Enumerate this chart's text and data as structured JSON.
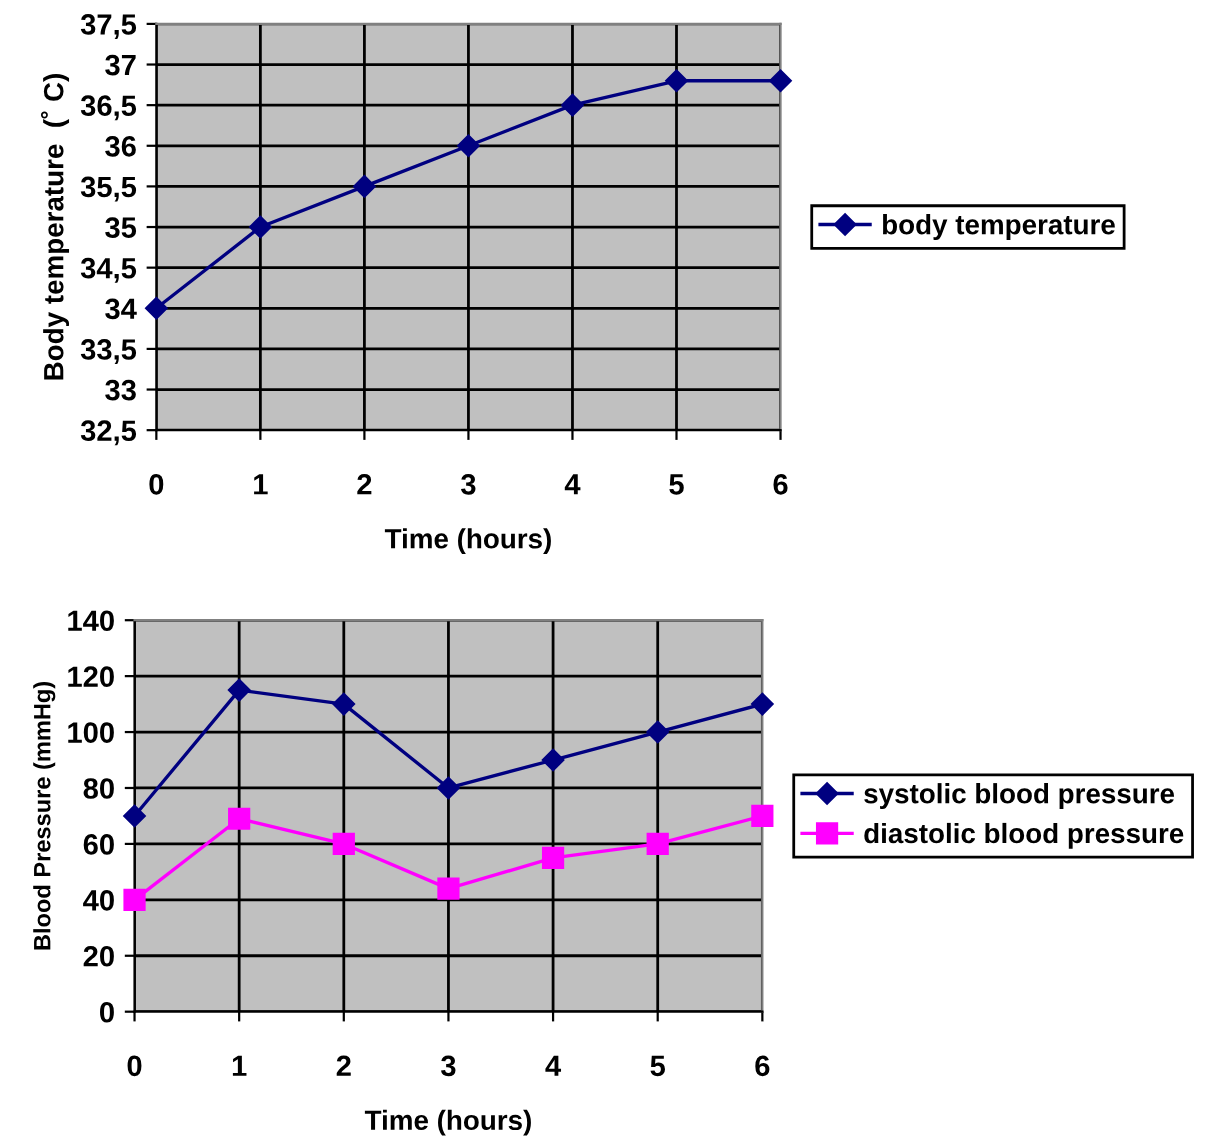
{
  "chart_data": [
    {
      "type": "line",
      "xlabel": "Time (hours)",
      "ylabel": "Body temperature  (˚ C)",
      "x": [
        0,
        1,
        2,
        3,
        4,
        5,
        6
      ],
      "series": [
        {
          "name": "body temperature",
          "color": "#000080",
          "marker": "diamond",
          "values": [
            34,
            35,
            35.5,
            36,
            36.5,
            36.8,
            36.8
          ]
        }
      ],
      "xlim": [
        0,
        6
      ],
      "xticks": [
        0,
        1,
        2,
        3,
        4,
        5,
        6
      ],
      "ylim": [
        32.5,
        37.5
      ],
      "yticks": [
        {
          "value": 32.5,
          "label": "32,5"
        },
        33,
        {
          "value": 33.5,
          "label": "33,5"
        },
        34,
        {
          "value": 34.5,
          "label": "34,5"
        },
        35,
        {
          "value": 35.5,
          "label": "35,5"
        },
        36,
        {
          "value": 36.5,
          "label": "36,5"
        },
        37,
        {
          "value": 37.5,
          "label": "37,5"
        }
      ],
      "grid": true,
      "legend": "right",
      "line_style": "solid"
    },
    {
      "type": "line",
      "xlabel": "Time (hours)",
      "ylabel": "Blood Pressure (mmHg)",
      "x": [
        0,
        1,
        2,
        3,
        4,
        5,
        6
      ],
      "series": [
        {
          "name": "systolic blood pressure",
          "color": "#000080",
          "marker": "diamond",
          "values": [
            70,
            115,
            110,
            80,
            90,
            100,
            110
          ]
        },
        {
          "name": "diastolic blood pressure",
          "color": "#ff00ff",
          "marker": "square",
          "values": [
            40,
            69,
            60,
            44,
            55,
            60,
            70
          ]
        }
      ],
      "xlim": [
        0,
        6
      ],
      "xticks": [
        0,
        1,
        2,
        3,
        4,
        5,
        6
      ],
      "ylim": [
        0,
        140
      ],
      "yticks": [
        0,
        20,
        40,
        60,
        80,
        100,
        120,
        140
      ],
      "grid": true,
      "legend": "right",
      "line_style": "solid"
    }
  ]
}
